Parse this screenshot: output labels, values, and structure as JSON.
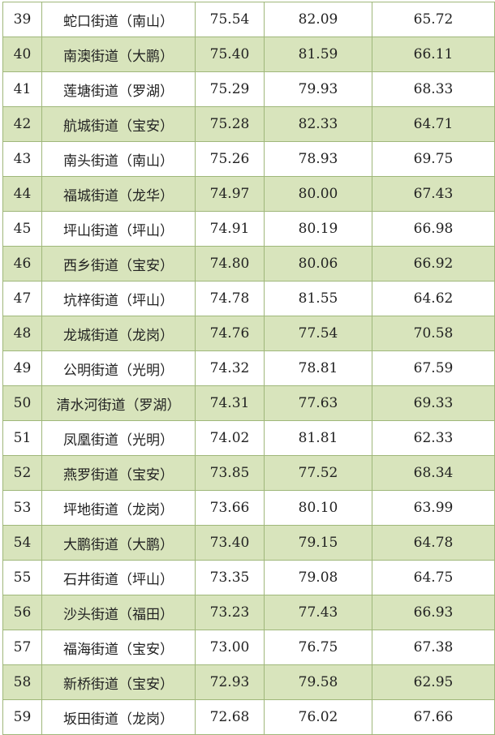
{
  "table": {
    "rows": [
      {
        "rank": "39",
        "name": "蛇口街道（南山）",
        "v1": "75.54",
        "v2": "82.09",
        "v3": "65.72"
      },
      {
        "rank": "40",
        "name": "南澳街道（大鹏）",
        "v1": "75.40",
        "v2": "81.59",
        "v3": "66.11"
      },
      {
        "rank": "41",
        "name": "莲塘街道（罗湖）",
        "v1": "75.29",
        "v2": "79.93",
        "v3": "68.33"
      },
      {
        "rank": "42",
        "name": "航城街道（宝安）",
        "v1": "75.28",
        "v2": "82.33",
        "v3": "64.71"
      },
      {
        "rank": "43",
        "name": "南头街道（南山）",
        "v1": "75.26",
        "v2": "78.93",
        "v3": "69.75"
      },
      {
        "rank": "44",
        "name": "福城街道（龙华）",
        "v1": "74.97",
        "v2": "80.00",
        "v3": "67.43"
      },
      {
        "rank": "45",
        "name": "坪山街道（坪山）",
        "v1": "74.91",
        "v2": "80.19",
        "v3": "66.98"
      },
      {
        "rank": "46",
        "name": "西乡街道（宝安）",
        "v1": "74.80",
        "v2": "80.06",
        "v3": "66.92"
      },
      {
        "rank": "47",
        "name": "坑梓街道（坪山）",
        "v1": "74.78",
        "v2": "81.55",
        "v3": "64.62"
      },
      {
        "rank": "48",
        "name": "龙城街道（龙岗）",
        "v1": "74.76",
        "v2": "77.54",
        "v3": "70.58"
      },
      {
        "rank": "49",
        "name": "公明街道（光明）",
        "v1": "74.32",
        "v2": "78.81",
        "v3": "67.59"
      },
      {
        "rank": "50",
        "name": "清水河街道（罗湖）",
        "v1": "74.31",
        "v2": "77.63",
        "v3": "69.33"
      },
      {
        "rank": "51",
        "name": "凤凰街道（光明）",
        "v1": "74.02",
        "v2": "81.81",
        "v3": "62.33"
      },
      {
        "rank": "52",
        "name": "燕罗街道（宝安）",
        "v1": "73.85",
        "v2": "77.52",
        "v3": "68.34"
      },
      {
        "rank": "53",
        "name": "坪地街道（龙岗）",
        "v1": "73.66",
        "v2": "80.10",
        "v3": "63.99"
      },
      {
        "rank": "54",
        "name": "大鹏街道（大鹏）",
        "v1": "73.40",
        "v2": "79.15",
        "v3": "64.78"
      },
      {
        "rank": "55",
        "name": "石井街道（坪山）",
        "v1": "73.35",
        "v2": "79.08",
        "v3": "64.75"
      },
      {
        "rank": "56",
        "name": "沙头街道（福田）",
        "v1": "73.23",
        "v2": "77.43",
        "v3": "66.93"
      },
      {
        "rank": "57",
        "name": "福海街道（宝安）",
        "v1": "73.00",
        "v2": "76.75",
        "v3": "67.38"
      },
      {
        "rank": "58",
        "name": "新桥街道（宝安）",
        "v1": "72.93",
        "v2": "79.58",
        "v3": "62.95"
      },
      {
        "rank": "59",
        "name": "坂田街道（龙岗）",
        "v1": "72.68",
        "v2": "76.02",
        "v3": "67.66"
      }
    ]
  },
  "colors": {
    "alt_row": "#d8e4bc",
    "border": "#9fb77a"
  }
}
